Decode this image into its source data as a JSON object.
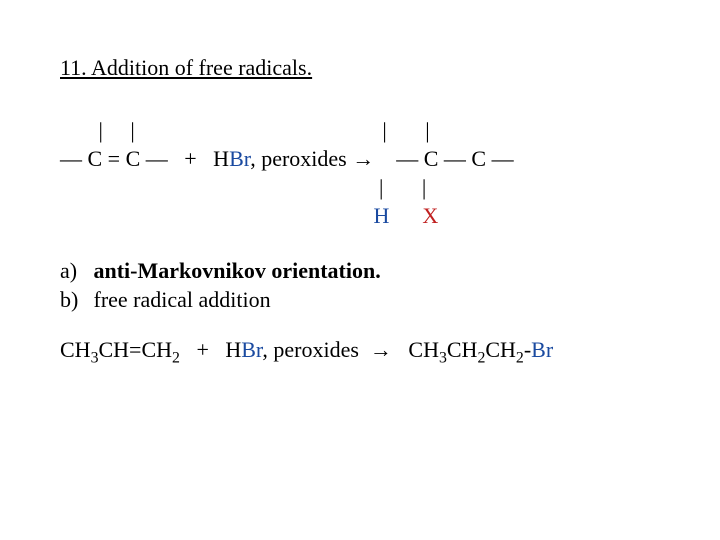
{
  "title": "11. Addition of free radicals.",
  "reaction": {
    "line1_left": "       |     |",
    "line1_right": "                                             |       |",
    "line2_prefix": "— C = C —   +   H",
    "line2_hbr_suffix": "Br",
    "line2_middle": ", peroxides ",
    "arrow": "→",
    "line2_after_arrow": "    — C — C —",
    "line3": "                                                          |       |",
    "line4_spaces": "                                                         ",
    "line4_H": "H",
    "line4_between": "      ",
    "line4_X": "X"
  },
  "notes": {
    "a_marker": "a)",
    "a_text": "anti-Markovnikov orientation.",
    "b_marker": "b)",
    "b_text": "free radical addition"
  },
  "example": {
    "r1_a": "CH",
    "r1_b": "3",
    "r1_c": "CH=CH",
    "r1_d": "2",
    "plus": "   +   H",
    "hbr_br": "Br",
    "mid": ", peroxides  ",
    "arrow": "→",
    "prod_pre": "   CH",
    "prod_s1": "3",
    "prod_mid1": "CH",
    "prod_s2": "2",
    "prod_mid2": "CH",
    "prod_s3": "2",
    "prod_dash": "-",
    "prod_br": "Br"
  },
  "colors": {
    "hbr_br": "#1a4aa0",
    "product_H": "#1a4aa0",
    "product_X": "#c02020"
  }
}
